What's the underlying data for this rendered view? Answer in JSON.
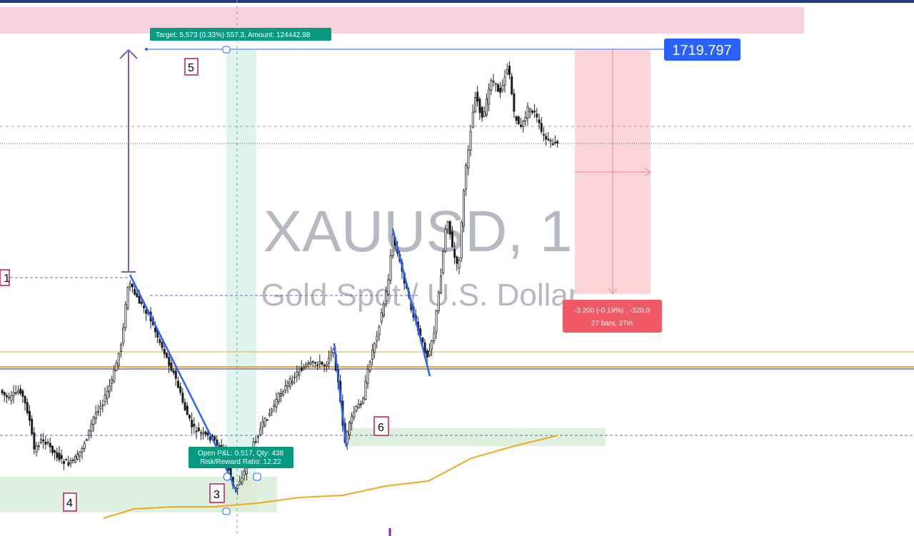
{
  "chart_data": {
    "type": "candlestick",
    "symbol": "XAUUSD",
    "interval": "1",
    "description": "Gold Spot / U.S. Dollar",
    "last_price_label": "1719.797",
    "target_label": "Target: 5.573 (0.33%) 557.3, Amount: 124442.98",
    "position_label": "Open P&L: 0.517, Qty: 438",
    "risk_reward_label": "Risk/Reward Ratio: 12.22",
    "measure_label_1": "-3.200 (-0.19%) , -320.0",
    "measure_label_2": "27 bars, 27m",
    "markers": [
      "1",
      "3",
      "4",
      "5",
      "6"
    ],
    "colors": {
      "candle": "#1f1f1f",
      "trend_line": "#2962ff",
      "price_badge": "#2962ff",
      "target_badge": "#089981",
      "measure_badge": "#f23645",
      "moving_average": "#f5a623",
      "marker_border": "#c2185b",
      "arrow": "#7e57c2"
    }
  }
}
